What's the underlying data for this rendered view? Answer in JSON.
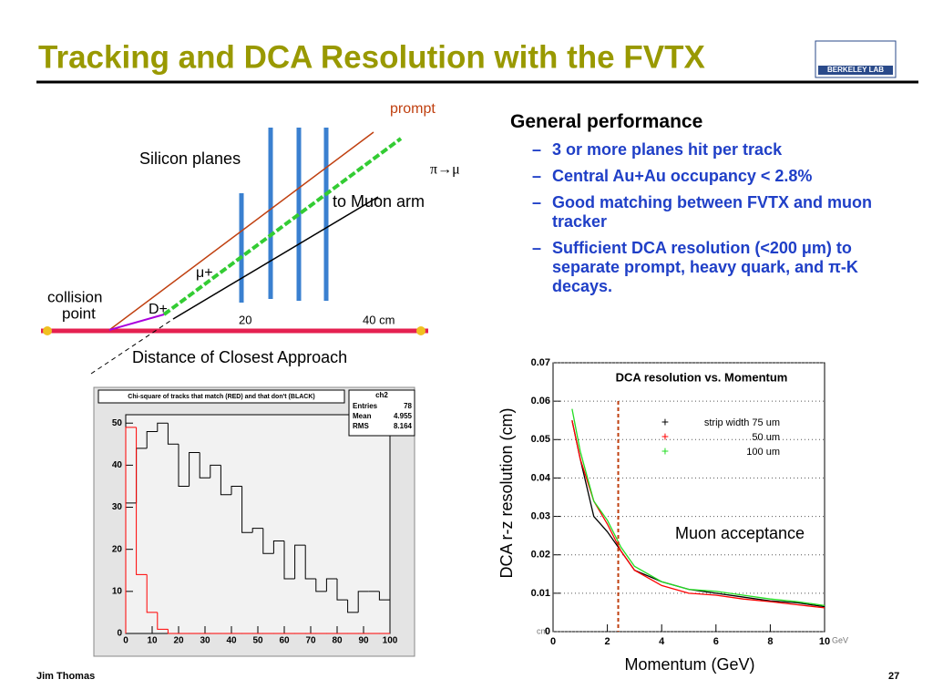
{
  "slide": {
    "title": "Tracking and DCA Resolution with the FVTX",
    "logo": "BERKELEY LAB",
    "footer_left": "Jim Thomas",
    "footer_right": "27"
  },
  "diagram": {
    "prompt": "prompt",
    "pimu": "π→μ",
    "silicon": "Silicon planes",
    "muon_arm": "to Muon arm",
    "mu": "μ+",
    "d": "D+",
    "collision": "collision",
    "point": "point",
    "tick20": "20",
    "tick40": "40 cm",
    "dca": "Distance of Closest Approach"
  },
  "bullets": {
    "heading": "General performance",
    "items": [
      "3 or more planes hit per track",
      "Central Au+Au occupancy < 2.8%",
      "Good matching between FVTX and muon tracker",
      "Sufficient DCA resolution (<200 μm) to separate prompt, heavy quark, and π-K decays."
    ]
  },
  "chart_data": [
    {
      "type": "histogram",
      "title": "Chi-square of tracks that match (RED) and that don't (BLACK)",
      "stats": {
        "name": "ch2",
        "rows": [
          [
            "Entries",
            "78"
          ],
          [
            "Mean",
            "4.955"
          ],
          [
            "RMS",
            "8.164"
          ]
        ]
      },
      "bins": [
        0,
        4,
        8,
        12,
        16,
        20,
        24,
        28,
        32,
        36,
        40,
        44,
        48,
        52,
        56,
        60,
        64,
        68,
        72,
        76,
        80,
        84,
        88,
        92,
        96,
        100
      ],
      "series": [
        {
          "color": "#000000",
          "values": [
            31,
            44,
            48,
            50,
            45,
            35,
            43,
            37,
            40,
            33,
            35,
            24,
            25,
            19,
            22,
            13,
            21,
            13,
            10,
            13,
            8,
            5,
            10,
            10,
            8
          ]
        },
        {
          "color": "#ff0000",
          "values": [
            49,
            14,
            5,
            1,
            0,
            0,
            0,
            0,
            0,
            0,
            0,
            0,
            0,
            0,
            0,
            0,
            0,
            0,
            0,
            0,
            0,
            0,
            0,
            0,
            0
          ]
        }
      ],
      "xlim": [
        0,
        100
      ],
      "xticks": [
        0,
        10,
        20,
        30,
        40,
        50,
        60,
        70,
        80,
        90,
        100
      ],
      "ylim": [
        0,
        52
      ],
      "yticks": [
        0,
        10,
        20,
        30,
        40,
        50
      ]
    },
    {
      "type": "line",
      "title": "DCA resolution vs. Momentum",
      "ylabel": "DCA r-z resolution (cm)",
      "xlabel": "Momentum (GeV)",
      "y_unit": "cm",
      "x_unit": "GeV",
      "x": [
        0.7,
        1,
        1.5,
        2,
        2.5,
        3,
        4,
        5,
        6,
        7,
        8,
        9,
        10
      ],
      "series": [
        {
          "name": "strip width 75 um",
          "color": "#000000",
          "values": [
            0.055,
            0.045,
            0.03,
            0.026,
            0.021,
            0.016,
            0.013,
            0.011,
            0.01,
            0.009,
            0.008,
            0.0075,
            0.0065
          ]
        },
        {
          "name": "50 um",
          "color": "#ff0000",
          "values": [
            0.055,
            0.045,
            0.034,
            0.028,
            0.021,
            0.016,
            0.012,
            0.01,
            0.0095,
            0.0085,
            0.0078,
            0.007,
            0.0062
          ]
        },
        {
          "name": "100 um",
          "color": "#22dd22",
          "values": [
            0.058,
            0.047,
            0.034,
            0.029,
            0.022,
            0.017,
            0.013,
            0.011,
            0.0105,
            0.0095,
            0.0085,
            0.0078,
            0.0068
          ]
        }
      ],
      "annotations": [
        {
          "text": "Muon acceptance",
          "x": 2.4
        }
      ],
      "xlim": [
        0,
        10
      ],
      "xticks": [
        0,
        2,
        4,
        6,
        8,
        10
      ],
      "ylim": [
        0,
        0.07
      ],
      "yticks": [
        0,
        0.01,
        0.02,
        0.03,
        0.04,
        0.05,
        0.06,
        0.07
      ],
      "grid": true
    }
  ]
}
